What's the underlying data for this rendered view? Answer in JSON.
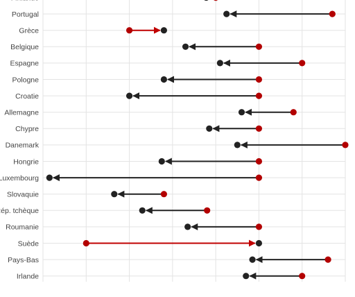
{
  "chart_data": {
    "type": "dumbbell",
    "x_range": [
      -1,
      6
    ],
    "arrow_from": "start",
    "arrow_to": "end",
    "colors": {
      "start_point": "#b30000",
      "end_point": "#222222",
      "arrow_default": "#222222",
      "arrow_increase": "#c00000"
    },
    "rows": [
      {
        "country": "Finlande",
        "start": 3.0,
        "end": 2.78
      },
      {
        "country": "Portugal",
        "start": 5.7,
        "end": 3.25
      },
      {
        "country": "Grèce",
        "start": 1.0,
        "end": 1.8
      },
      {
        "country": "Belgique",
        "start": 4.0,
        "end": 2.3
      },
      {
        "country": "Espagne",
        "start": 5.0,
        "end": 3.1
      },
      {
        "country": "Pologne",
        "start": 4.0,
        "end": 1.8
      },
      {
        "country": "Croatie",
        "start": 4.0,
        "end": 1.0
      },
      {
        "country": "Allemagne",
        "start": 4.8,
        "end": 3.6
      },
      {
        "country": "Chypre",
        "start": 4.0,
        "end": 2.85
      },
      {
        "country": "Danemark",
        "start": 6.0,
        "end": 3.5
      },
      {
        "country": "Hongrie",
        "start": 4.0,
        "end": 1.75
      },
      {
        "country": "Luxembourg",
        "start": 4.0,
        "end": -0.85
      },
      {
        "country": "Slovaquie",
        "start": 1.8,
        "end": 0.65
      },
      {
        "country": "Rép. tchèque",
        "start": 2.8,
        "end": 1.3
      },
      {
        "country": "Roumanie",
        "start": 4.0,
        "end": 2.35
      },
      {
        "country": "Suède",
        "start": 0.0,
        "end": 4.0
      },
      {
        "country": "Pays-Bas",
        "start": 5.6,
        "end": 3.85
      },
      {
        "country": "Irlande",
        "start": 5.0,
        "end": 3.7
      }
    ]
  }
}
